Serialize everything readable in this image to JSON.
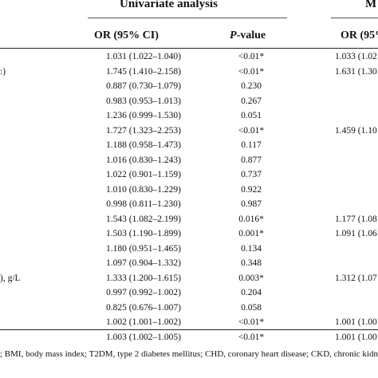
{
  "headers": {
    "univariate": "Univariate analysis",
    "multivariate_partial": "M",
    "or_ci": "OR (95% CI)",
    "p_italic": "P",
    "p_rest": "-value",
    "or_ci_partial": "OR (95%"
  },
  "rows": [
    {
      "label": "",
      "or": "1.031 (1.022–1.040)",
      "p": "<0.01*",
      "or2": "1.033 (1.02"
    },
    {
      "label": ":)",
      "or": "1.745 (1.410–2.158)",
      "p": "<0.01*",
      "or2": "1.631 (1.30"
    },
    {
      "label": "",
      "or": "0.887 (0.730–1.079)",
      "p": "0.230",
      "or2": ""
    },
    {
      "label": "",
      "or": "0.983 (0.953–1.013)",
      "p": "0.267",
      "or2": ""
    },
    {
      "label": "",
      "or": "1.236 (0.999–1.530)",
      "p": "0.051",
      "or2": ""
    },
    {
      "label": "",
      "or": "1.727 (1.323–2.253)",
      "p": "<0.01*",
      "or2": "1.459 (1.10"
    },
    {
      "label": "",
      "or": "1.188 (0.958–1.473)",
      "p": "0.117",
      "or2": ""
    },
    {
      "label": "",
      "or": "1.016 (0.830–1.243)",
      "p": "0.877",
      "or2": ""
    },
    {
      "label": "",
      "or": "1.022 (0.901–1.159)",
      "p": "0.737",
      "or2": ""
    },
    {
      "label": "",
      "or": "1.010 (0.830–1.229)",
      "p": "0.922",
      "or2": ""
    },
    {
      "label": "",
      "or": "0.998 (0.811–1.230)",
      "p": "0.987",
      "or2": ""
    },
    {
      "label": "",
      "or": "1.543 (1.082–2.199)",
      "p": "0.016*",
      "or2": "1.177 (1.08"
    },
    {
      "label": "",
      "or": "1.503 (1.190–1.899)",
      "p": "0.001*",
      "or2": "1.091 (1.06"
    },
    {
      "label": "",
      "or": "1.180 (0.951–1.465)",
      "p": "0.134",
      "or2": ""
    },
    {
      "label": "",
      "or": "1.097 (0.904–1.332)",
      "p": "0.348",
      "or2": ""
    },
    {
      "label": "), g/L",
      "or": "1.333 (1.200–1.615)",
      "p": "0.003*",
      "or2": "1.312 (1.07"
    },
    {
      "label": "",
      "or": "0.997 (0.992–1.002)",
      "p": "0.204",
      "or2": ""
    },
    {
      "label": "",
      "or": "0.825 (0.676–1.007)",
      "p": "0.058",
      "or2": ""
    },
    {
      "label": "",
      "or": "1.002 (1.001–1.002)",
      "p": "<0.01*",
      "or2": "1.001 (1.00"
    },
    {
      "label": "",
      "or": "1.003 (1.002–1.005)",
      "p": "<0.01*",
      "or2": "1.001 (1.00"
    }
  ],
  "footnote": "; BMI, body mass index; T2DM, type 2 diabetes mellitus; CHD, coronary heart disease; CKD, chronic kidne"
}
